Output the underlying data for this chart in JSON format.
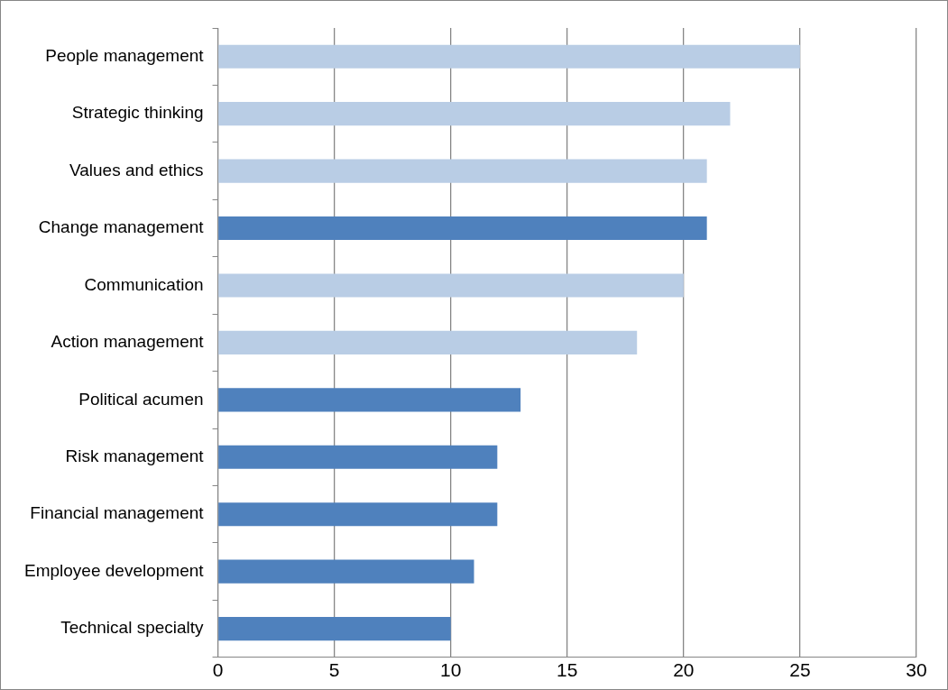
{
  "chart_data": {
    "type": "bar",
    "orientation": "horizontal",
    "categories": [
      "People management",
      "Strategic thinking",
      "Values and ethics",
      "Change management",
      "Communication",
      "Action management",
      "Political acumen",
      "Risk management",
      "Financial management",
      "Employee development",
      "Technical specialty"
    ],
    "values": [
      25,
      22,
      21,
      21,
      20,
      18,
      13,
      12,
      12,
      11,
      10
    ],
    "colors": [
      "#b9cde5",
      "#b9cde5",
      "#b9cde5",
      "#4f81bd",
      "#b9cde5",
      "#b9cde5",
      "#4f81bd",
      "#4f81bd",
      "#4f81bd",
      "#4f81bd",
      "#4f81bd"
    ],
    "xlim": [
      0,
      30
    ],
    "xticks": [
      0,
      5,
      10,
      15,
      20,
      25,
      30
    ],
    "grid": "x",
    "legend": false
  }
}
